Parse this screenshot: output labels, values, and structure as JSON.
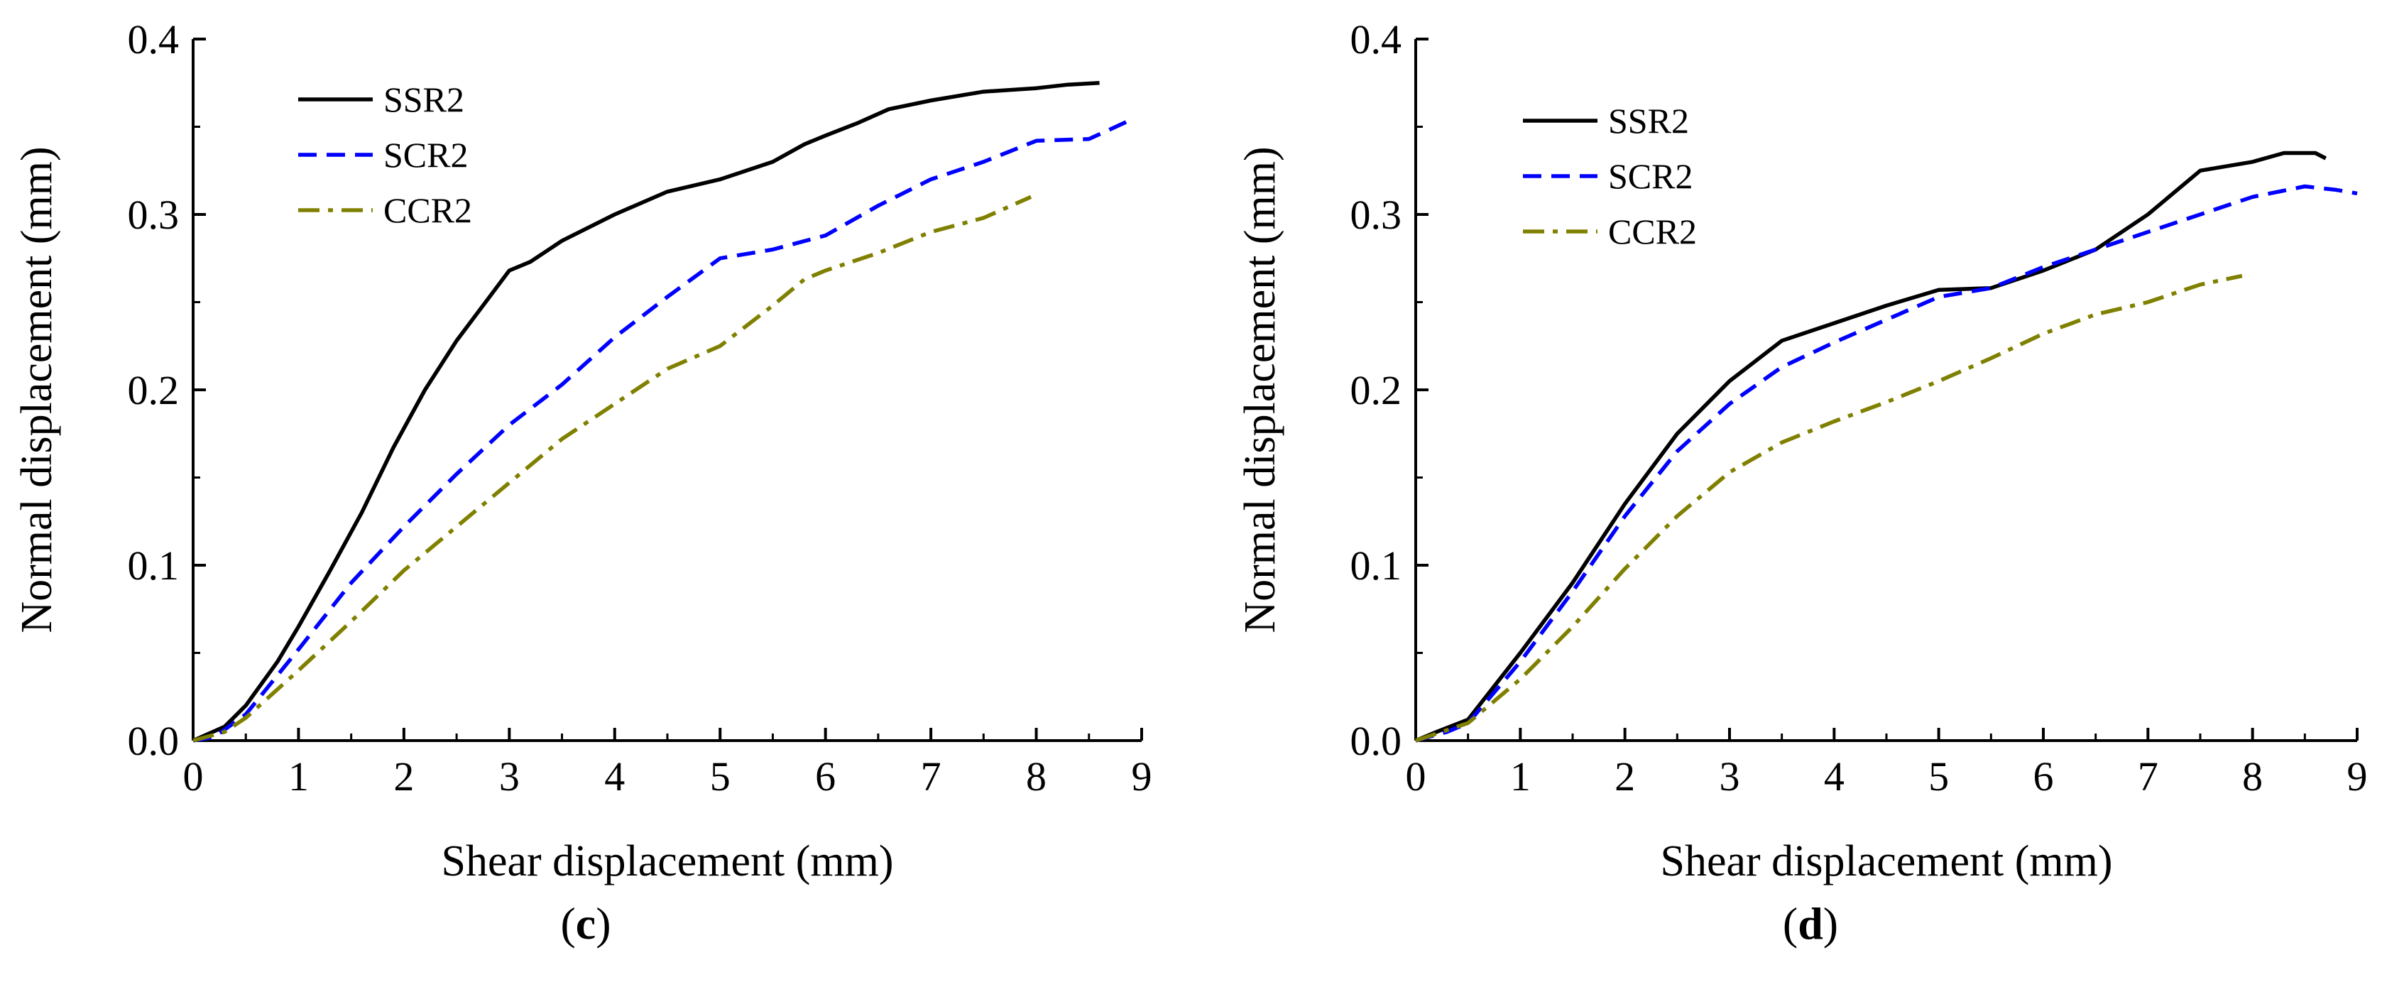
{
  "chart_data": [
    {
      "type": "line",
      "panel": "c",
      "xlabel": "Shear displacement (mm)",
      "ylabel": "Normal displacement (mm)",
      "xlim": [
        0,
        9
      ],
      "ylim": [
        0,
        0.4
      ],
      "xticks": [
        0,
        1,
        2,
        3,
        4,
        5,
        6,
        7,
        8,
        9
      ],
      "yticks": [
        0.0,
        0.1,
        0.2,
        0.3,
        0.4
      ],
      "xtick_labels": [
        "0",
        "1",
        "2",
        "3",
        "4",
        "5",
        "6",
        "7",
        "8",
        "9"
      ],
      "ytick_labels": [
        "0.0",
        "0.1",
        "0.2",
        "0.3",
        "0.4"
      ],
      "legend": "top-left",
      "series": [
        {
          "name": "SSR2",
          "color": "#000000",
          "dash": "solid",
          "x": [
            0,
            0.3,
            0.5,
            0.8,
            1.0,
            1.3,
            1.6,
            1.9,
            2.2,
            2.5,
            2.8,
            3.0,
            3.2,
            3.5,
            4.0,
            4.5,
            5.0,
            5.5,
            5.8,
            6.0,
            6.3,
            6.6,
            7.0,
            7.5,
            8.0,
            8.3,
            8.6
          ],
          "y": [
            0,
            0.008,
            0.02,
            0.045,
            0.065,
            0.097,
            0.13,
            0.167,
            0.2,
            0.228,
            0.252,
            0.268,
            0.273,
            0.285,
            0.3,
            0.313,
            0.32,
            0.33,
            0.34,
            0.345,
            0.352,
            0.36,
            0.365,
            0.37,
            0.372,
            0.374,
            0.375
          ]
        },
        {
          "name": "SCR2",
          "color": "#0000ff",
          "dash": "dashed",
          "x": [
            0,
            0.2,
            0.5,
            1.0,
            1.5,
            2.0,
            2.5,
            3.0,
            3.5,
            4.0,
            4.5,
            5.0,
            5.5,
            6.0,
            6.5,
            7.0,
            7.5,
            8.0,
            8.5,
            8.9
          ],
          "y": [
            0,
            0.002,
            0.015,
            0.052,
            0.09,
            0.122,
            0.152,
            0.18,
            0.203,
            0.23,
            0.253,
            0.275,
            0.28,
            0.288,
            0.305,
            0.32,
            0.33,
            0.342,
            0.343,
            0.354
          ]
        },
        {
          "name": "CCR2",
          "color": "#808000",
          "dash": "dashdot",
          "x": [
            0,
            0.3,
            0.5,
            1.0,
            1.5,
            2.0,
            2.5,
            3.0,
            3.5,
            4.0,
            4.5,
            5.0,
            5.5,
            5.8,
            6.0,
            6.5,
            7.0,
            7.5,
            7.95
          ],
          "y": [
            0,
            0.005,
            0.013,
            0.04,
            0.068,
            0.097,
            0.122,
            0.147,
            0.172,
            0.192,
            0.212,
            0.225,
            0.248,
            0.263,
            0.268,
            0.278,
            0.29,
            0.298,
            0.31
          ]
        }
      ]
    },
    {
      "type": "line",
      "panel": "d",
      "xlabel": "Shear displacement (mm)",
      "ylabel": "Normal displacement (mm)",
      "xlim": [
        0,
        9
      ],
      "ylim": [
        0,
        0.4
      ],
      "xticks": [
        0,
        1,
        2,
        3,
        4,
        5,
        6,
        7,
        8,
        9
      ],
      "yticks": [
        0.0,
        0.1,
        0.2,
        0.3,
        0.4
      ],
      "xtick_labels": [
        "0",
        "1",
        "2",
        "3",
        "4",
        "5",
        "6",
        "7",
        "8",
        "9"
      ],
      "ytick_labels": [
        "0.0",
        "0.1",
        "0.2",
        "0.3",
        "0.4"
      ],
      "legend": "top-left",
      "series": [
        {
          "name": "SSR2",
          "color": "#000000",
          "dash": "solid",
          "x": [
            0,
            0.2,
            0.5,
            1.0,
            1.5,
            2.0,
            2.5,
            3.0,
            3.5,
            4.0,
            4.5,
            5.0,
            5.5,
            6.0,
            6.5,
            7.0,
            7.5,
            8.0,
            8.3,
            8.6,
            8.7
          ],
          "y": [
            0,
            0.005,
            0.012,
            0.05,
            0.09,
            0.135,
            0.175,
            0.205,
            0.228,
            0.238,
            0.248,
            0.257,
            0.258,
            0.268,
            0.28,
            0.3,
            0.325,
            0.33,
            0.335,
            0.335,
            0.332
          ]
        },
        {
          "name": "SCR2",
          "color": "#0000ff",
          "dash": "dashed",
          "x": [
            0,
            0.3,
            0.5,
            1.0,
            1.5,
            2.0,
            2.5,
            3.0,
            3.5,
            4.0,
            4.5,
            5.0,
            5.5,
            6.0,
            6.5,
            7.0,
            7.5,
            8.0,
            8.5,
            8.8,
            9.0
          ],
          "y": [
            0,
            0.005,
            0.01,
            0.045,
            0.085,
            0.128,
            0.165,
            0.192,
            0.213,
            0.227,
            0.24,
            0.253,
            0.258,
            0.27,
            0.28,
            0.29,
            0.3,
            0.31,
            0.316,
            0.314,
            0.312
          ]
        },
        {
          "name": "CCR2",
          "color": "#808000",
          "dash": "dashdot",
          "x": [
            0,
            0.5,
            1.0,
            1.5,
            2.0,
            2.5,
            3.0,
            3.5,
            4.0,
            4.5,
            5.0,
            5.5,
            6.0,
            6.5,
            7.0,
            7.5,
            7.9
          ],
          "y": [
            0,
            0.01,
            0.035,
            0.065,
            0.098,
            0.128,
            0.153,
            0.17,
            0.182,
            0.193,
            0.205,
            0.218,
            0.232,
            0.243,
            0.25,
            0.26,
            0.265
          ]
        }
      ]
    }
  ],
  "captions": {
    "c": {
      "open": "(",
      "letter": "c",
      "close": ")"
    },
    "d": {
      "open": "(",
      "letter": "d",
      "close": ")"
    }
  }
}
